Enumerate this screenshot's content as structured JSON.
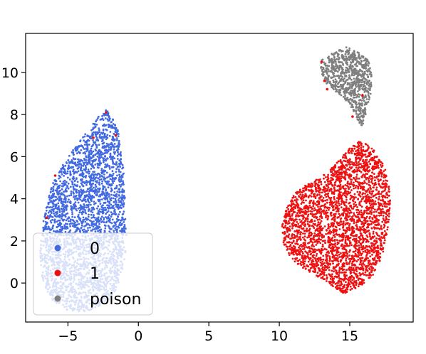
{
  "chart_data": {
    "type": "scatter",
    "title": "",
    "xlabel": "",
    "ylabel": "",
    "xlim": [
      -8,
      19.5
    ],
    "ylim": [
      -1.85,
      11.85
    ],
    "xticks": [
      -5,
      0,
      5,
      10,
      15
    ],
    "xtick_labels": [
      "−5",
      "0",
      "5",
      "10",
      "15"
    ],
    "yticks": [
      0,
      2,
      4,
      6,
      8,
      10
    ],
    "ytick_labels": [
      "0",
      "2",
      "4",
      "6",
      "8",
      "10"
    ],
    "grid": false,
    "legend": {
      "placement": "lower-left",
      "entries": [
        {
          "label": "0",
          "color": "#4169e1"
        },
        {
          "label": "1",
          "color": "#ee1111"
        },
        {
          "label": "poison",
          "color": "#7f7f7f"
        }
      ]
    },
    "series": [
      {
        "name": "0",
        "color": "#4169e1",
        "cluster_outline": [
          [
            -2.4,
            8.3
          ],
          [
            -1.8,
            7.9
          ],
          [
            -1.4,
            7.2
          ],
          [
            -1.2,
            6.2
          ],
          [
            -1.0,
            5.0
          ],
          [
            -0.9,
            3.5
          ],
          [
            -0.8,
            2.2
          ],
          [
            -1.0,
            1.0
          ],
          [
            -1.5,
            -0.2
          ],
          [
            -2.2,
            -0.9
          ],
          [
            -3.0,
            -1.2
          ],
          [
            -4.0,
            -1.4
          ],
          [
            -5.0,
            -1.3
          ],
          [
            -6.0,
            -0.9
          ],
          [
            -6.8,
            0.0
          ],
          [
            -7.0,
            1.5
          ],
          [
            -6.7,
            3.2
          ],
          [
            -6.1,
            4.7
          ],
          [
            -5.2,
            5.8
          ],
          [
            -4.2,
            6.7
          ],
          [
            -3.3,
            7.5
          ]
        ],
        "point_count": 3000
      },
      {
        "name": "1",
        "color": "#ee1111",
        "cluster_outline": [
          [
            15.8,
            6.8
          ],
          [
            16.9,
            6.2
          ],
          [
            17.6,
            5.4
          ],
          [
            17.9,
            4.0
          ],
          [
            17.7,
            2.5
          ],
          [
            17.3,
            1.2
          ],
          [
            16.5,
            0.2
          ],
          [
            15.5,
            -0.3
          ],
          [
            14.5,
            -0.5
          ],
          [
            13.5,
            0.0
          ],
          [
            12.2,
            0.5
          ],
          [
            11.0,
            1.0
          ],
          [
            10.3,
            1.8
          ],
          [
            10.2,
            2.7
          ],
          [
            10.6,
            3.8
          ],
          [
            11.4,
            4.5
          ],
          [
            12.4,
            4.8
          ],
          [
            13.3,
            5.2
          ],
          [
            14.2,
            5.8
          ],
          [
            15.0,
            6.4
          ]
        ],
        "point_count": 3000
      },
      {
        "name": "poison",
        "color": "#7f7f7f",
        "cluster_outline": [
          [
            14.8,
            11.2
          ],
          [
            15.5,
            11.0
          ],
          [
            16.3,
            10.6
          ],
          [
            16.6,
            10.0
          ],
          [
            16.5,
            9.0
          ],
          [
            16.2,
            8.2
          ],
          [
            15.9,
            7.4
          ],
          [
            15.5,
            7.8
          ],
          [
            15.0,
            8.5
          ],
          [
            14.2,
            9.0
          ],
          [
            13.4,
            9.4
          ],
          [
            12.9,
            10.0
          ],
          [
            13.0,
            10.6
          ],
          [
            13.6,
            10.9
          ]
        ],
        "point_count": 800
      }
    ]
  }
}
